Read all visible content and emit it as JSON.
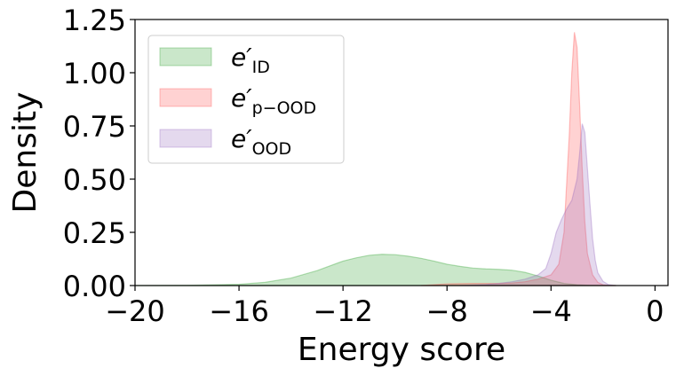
{
  "chart_data": {
    "type": "area",
    "xlabel": "Energy score",
    "ylabel": "Density",
    "xlim": [
      -20,
      0.5
    ],
    "ylim": [
      0,
      1.25
    ],
    "xticks": [
      -20,
      -16,
      -12,
      -8,
      -4,
      0
    ],
    "xtick_labels": [
      "−20",
      "−16",
      "−12",
      "−8",
      "−4",
      "0"
    ],
    "yticks": [
      0,
      0.25,
      0.5,
      0.75,
      1.0,
      1.25
    ],
    "ytick_labels": [
      "0.00",
      "0.25",
      "0.50",
      "0.75",
      "1.00",
      "1.25"
    ],
    "grid": false,
    "legend_position": "top-left",
    "series": [
      {
        "name_base": "e′",
        "name_sub": "ID",
        "color": "#2ca02c",
        "x": [
          -20,
          -18,
          -16,
          -15,
          -14,
          -13,
          -12,
          -11.5,
          -11,
          -10.5,
          -10,
          -9.5,
          -9,
          -8.5,
          -8,
          -7.5,
          -7,
          -6.5,
          -6,
          -5.5,
          -5,
          -4.5,
          -4,
          -3.5,
          -3,
          -2.5,
          -2,
          -1.5
        ],
        "y": [
          0,
          0.001,
          0.006,
          0.015,
          0.035,
          0.07,
          0.115,
          0.13,
          0.142,
          0.147,
          0.145,
          0.138,
          0.128,
          0.115,
          0.1,
          0.09,
          0.082,
          0.078,
          0.076,
          0.072,
          0.062,
          0.045,
          0.025,
          0.01,
          0.004,
          0.001,
          0,
          0
        ]
      },
      {
        "name_base": "e′",
        "name_sub": "p−OOD",
        "color": "#ff4d4d",
        "x": [
          -9,
          -8,
          -7,
          -6,
          -5.5,
          -5,
          -4.5,
          -4,
          -3.7,
          -3.5,
          -3.3,
          -3.2,
          -3.1,
          -3.0,
          -2.9,
          -2.8,
          -2.7,
          -2.6,
          -2.4,
          -2.2,
          -2.0,
          -1.8,
          -1.5
        ],
        "y": [
          0,
          0.008,
          0.01,
          0.01,
          0.012,
          0.018,
          0.03,
          0.05,
          0.1,
          0.25,
          0.7,
          1.0,
          1.19,
          1.12,
          0.85,
          0.55,
          0.3,
          0.15,
          0.05,
          0.015,
          0.004,
          0.001,
          0
        ]
      },
      {
        "name_base": "e′",
        "name_sub": "OOD",
        "color": "#9467bd",
        "x": [
          -7.5,
          -6.5,
          -6,
          -5.5,
          -5,
          -4.5,
          -4.2,
          -4,
          -3.8,
          -3.6,
          -3.4,
          -3.2,
          -3.0,
          -2.9,
          -2.8,
          -2.7,
          -2.6,
          -2.5,
          -2.4,
          -2.3,
          -2.2,
          -2.0,
          -1.8,
          -1.5
        ],
        "y": [
          0,
          0.005,
          0.01,
          0.018,
          0.03,
          0.05,
          0.08,
          0.15,
          0.25,
          0.31,
          0.36,
          0.4,
          0.5,
          0.62,
          0.76,
          0.72,
          0.55,
          0.38,
          0.22,
          0.12,
          0.06,
          0.02,
          0.005,
          0
        ]
      }
    ]
  }
}
